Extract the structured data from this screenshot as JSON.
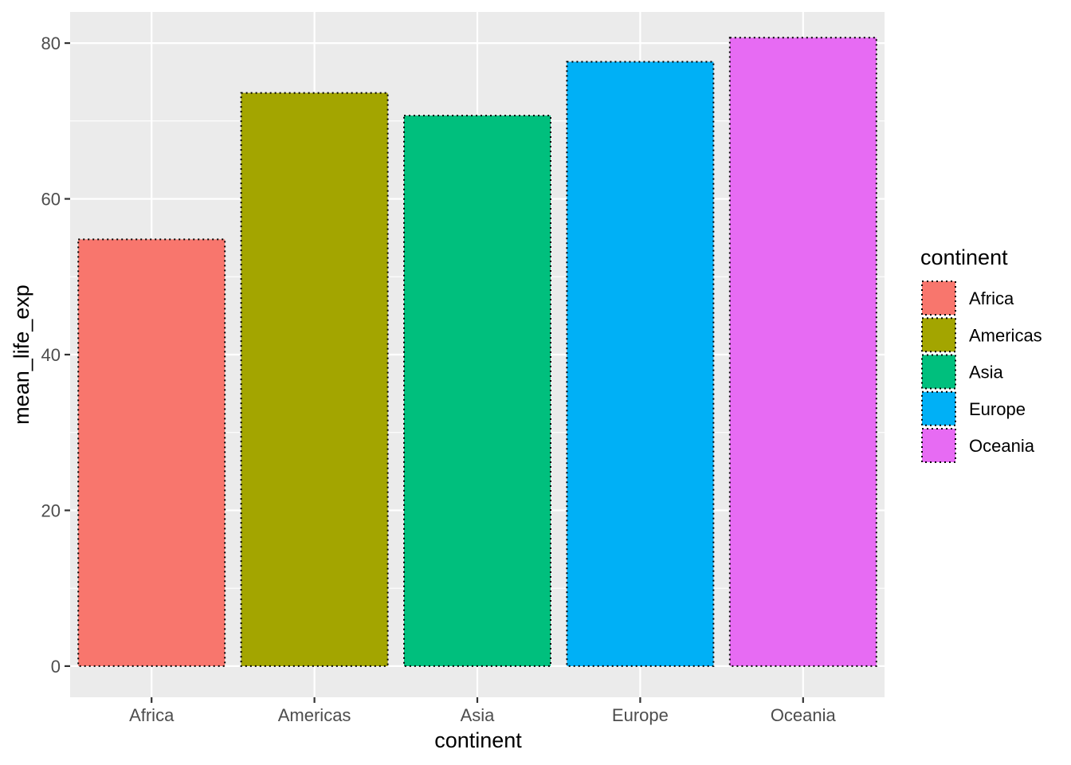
{
  "chart_data": {
    "type": "bar",
    "title": "",
    "xlabel": "continent",
    "ylabel": "mean_life_exp",
    "categories": [
      "Africa",
      "Americas",
      "Asia",
      "Europe",
      "Oceania"
    ],
    "values": [
      54.8,
      73.6,
      70.7,
      77.6,
      80.7
    ],
    "colors": [
      "#F8766D",
      "#A3A500",
      "#00BF7D",
      "#00B0F6",
      "#E76BF3"
    ],
    "ylim": [
      -4,
      84
    ],
    "y_ticks": [
      0,
      20,
      40,
      60,
      80
    ],
    "y_tick_labels": [
      "0",
      "20",
      "40",
      "60",
      "80"
    ],
    "grid": true,
    "panel_background": "#EBEBEB",
    "bar_border": "dotted black",
    "legend": {
      "title": "continent",
      "position": "right",
      "items": [
        "Africa",
        "Americas",
        "Asia",
        "Europe",
        "Oceania"
      ]
    }
  }
}
